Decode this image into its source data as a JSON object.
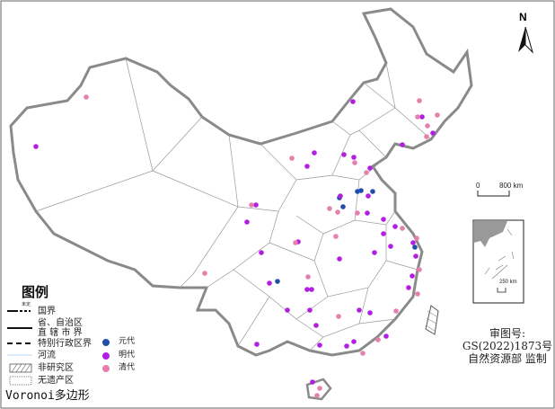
{
  "legend": {
    "title": "图例",
    "national_border": "国界",
    "national_border_small": "未定",
    "province_border_line1": "省、自治区",
    "province_border_line2": "直 辖 市 界",
    "sar_border": "特别行政区界",
    "river": "河流",
    "non_study_area": "非研究区",
    "no_heritage_area": "无遗产区",
    "voronoi": "Voronoi多边形",
    "dynasties": [
      {
        "label": "元代",
        "color": "#1f4fa8"
      },
      {
        "label": "明代",
        "color": "#b21fe0"
      },
      {
        "label": "清代",
        "color": "#e47fb0"
      }
    ]
  },
  "north_arrow": "N",
  "scale_bar": {
    "start": "0",
    "end": "800 km"
  },
  "inset_scale": {
    "label": "250 km"
  },
  "approval": {
    "line1": "审图号:",
    "line2": "GS(2022)1873号",
    "line3": "自然资源部 监制"
  },
  "colors": {
    "border": "#808080",
    "voronoi": "#9a9a9a",
    "yuan": "#1f4fa8",
    "ming": "#b21fe0",
    "qing": "#e47fb0"
  }
}
